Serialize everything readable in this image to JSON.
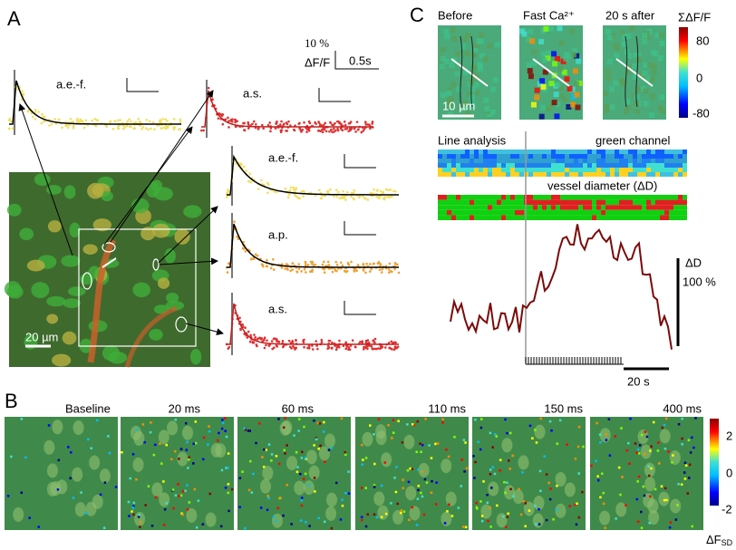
{
  "panel_a": {
    "label": "A",
    "scale_bar": {
      "amplitude": "10 %",
      "unit": "ΔF/F",
      "time": "0.5s"
    },
    "traces": [
      {
        "label": "a.e.-f."
      },
      {
        "label": "a.s."
      },
      {
        "label": "a.e.-f."
      },
      {
        "label": "a.p."
      },
      {
        "label": "a.s."
      }
    ],
    "image_scale": "20 µm"
  },
  "panel_b": {
    "label": "B",
    "frames": [
      "Baseline",
      "20 ms",
      "60 ms",
      "110 ms",
      "150 ms",
      "400 ms"
    ],
    "colorbar": {
      "ticks": [
        "2",
        "0",
        "-2"
      ],
      "label": "ΔF",
      "label_sub": "SD"
    }
  },
  "panel_c": {
    "label": "C",
    "images": [
      "Before",
      "Fast Ca²⁺",
      "20 s after"
    ],
    "image_scale": "10 µm",
    "colorbar": {
      "title": "ΣΔF/F",
      "ticks": [
        "80",
        "0",
        "-80"
      ]
    },
    "line_analysis": "Line analysis",
    "green_channel": "green channel",
    "vessel_diameter": "vessel diameter (ΔD)",
    "trace_scale": {
      "label": "ΔD",
      "value": "100 %"
    },
    "time_scale": "20 s"
  }
}
